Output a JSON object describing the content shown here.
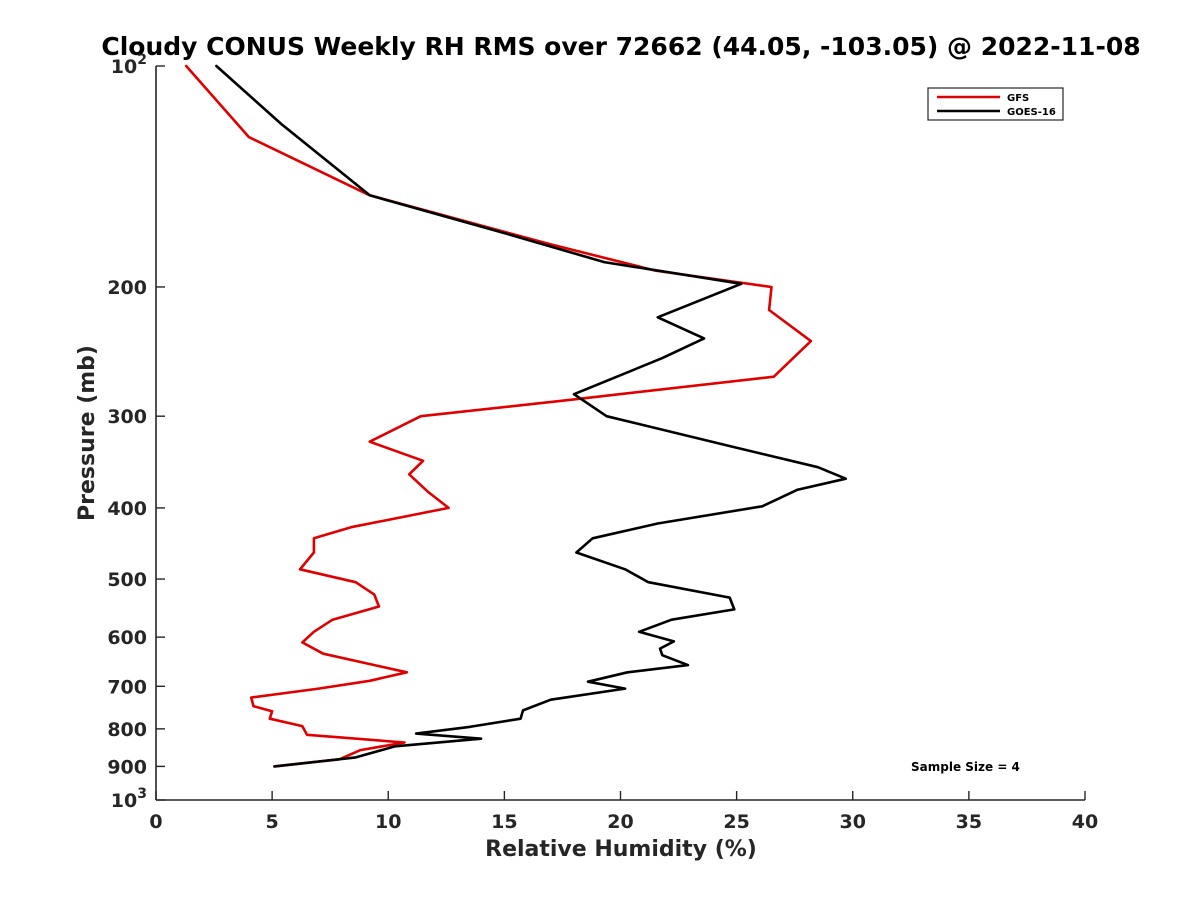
{
  "chart_data": {
    "type": "line",
    "title": "Cloudy CONUS Weekly RH RMS over 72662 (44.05, -103.05) @ 2022-11-08",
    "xlabel": "Relative Humidity (%)",
    "ylabel": "Pressure (mb)",
    "xlim": [
      0,
      40
    ],
    "ylim": [
      100,
      1000
    ],
    "y_scale": "log",
    "y_reversed": true,
    "x_ticks": [
      0,
      5,
      10,
      15,
      20,
      25,
      30,
      35,
      40
    ],
    "y_ticks": [
      {
        "value": 100,
        "base": "10",
        "exp": "2"
      },
      {
        "value": 200,
        "label": "200"
      },
      {
        "value": 300,
        "label": "300"
      },
      {
        "value": 400,
        "label": "400"
      },
      {
        "value": 500,
        "label": "500"
      },
      {
        "value": 600,
        "label": "600"
      },
      {
        "value": 700,
        "label": "700"
      },
      {
        "value": 800,
        "label": "800"
      },
      {
        "value": 900,
        "label": "900"
      },
      {
        "value": 1000,
        "base": "10",
        "exp": "3"
      }
    ],
    "grid": false,
    "legend_position": "top-right",
    "annotation": "Sample Size = 4",
    "series": [
      {
        "name": "GFS",
        "color": "#e00000",
        "points": [
          [
            1.3,
            100
          ],
          [
            4.0,
            125
          ],
          [
            9.2,
            150
          ],
          [
            17.0,
            175
          ],
          [
            21.5,
            190
          ],
          [
            26.5,
            200
          ],
          [
            26.4,
            215
          ],
          [
            28.2,
            237
          ],
          [
            26.6,
            265
          ],
          [
            17.8,
            285
          ],
          [
            11.4,
            300
          ],
          [
            9.2,
            325
          ],
          [
            11.5,
            345
          ],
          [
            10.9,
            360
          ],
          [
            11.7,
            380
          ],
          [
            12.6,
            400
          ],
          [
            8.4,
            425
          ],
          [
            6.8,
            440
          ],
          [
            6.8,
            460
          ],
          [
            6.2,
            485
          ],
          [
            8.6,
            505
          ],
          [
            9.4,
            525
          ],
          [
            9.6,
            545
          ],
          [
            7.6,
            568
          ],
          [
            6.8,
            590
          ],
          [
            6.3,
            610
          ],
          [
            7.2,
            632
          ],
          [
            9.6,
            657
          ],
          [
            10.8,
            670
          ],
          [
            9.2,
            688
          ],
          [
            7.0,
            705
          ],
          [
            4.1,
            725
          ],
          [
            4.2,
            745
          ],
          [
            5.0,
            757
          ],
          [
            4.9,
            775
          ],
          [
            6.3,
            793
          ],
          [
            6.5,
            815
          ],
          [
            10.7,
            835
          ],
          [
            8.8,
            855
          ],
          [
            7.9,
            880
          ],
          [
            5.1,
            900
          ]
        ]
      },
      {
        "name": "GOES-16",
        "color": "#000000",
        "points": [
          [
            2.6,
            100
          ],
          [
            5.4,
            120
          ],
          [
            9.2,
            150
          ],
          [
            15.3,
            170
          ],
          [
            19.3,
            185
          ],
          [
            25.2,
            198
          ],
          [
            21.6,
            220
          ],
          [
            23.6,
            235
          ],
          [
            21.8,
            250
          ],
          [
            18.0,
            280
          ],
          [
            19.4,
            300
          ],
          [
            24.8,
            330
          ],
          [
            28.5,
            352
          ],
          [
            29.7,
            365
          ],
          [
            27.6,
            378
          ],
          [
            26.1,
            398
          ],
          [
            21.6,
            420
          ],
          [
            18.8,
            440
          ],
          [
            18.1,
            460
          ],
          [
            20.2,
            485
          ],
          [
            21.2,
            505
          ],
          [
            24.7,
            530
          ],
          [
            24.9,
            550
          ],
          [
            22.2,
            568
          ],
          [
            20.8,
            590
          ],
          [
            22.3,
            608
          ],
          [
            21.7,
            622
          ],
          [
            21.8,
            635
          ],
          [
            22.9,
            655
          ],
          [
            20.3,
            670
          ],
          [
            18.6,
            690
          ],
          [
            20.2,
            705
          ],
          [
            17.0,
            730
          ],
          [
            15.8,
            755
          ],
          [
            15.7,
            775
          ],
          [
            13.5,
            795
          ],
          [
            11.2,
            812
          ],
          [
            14.0,
            825
          ],
          [
            10.3,
            845
          ],
          [
            8.6,
            875
          ],
          [
            5.1,
            900
          ]
        ]
      }
    ]
  }
}
